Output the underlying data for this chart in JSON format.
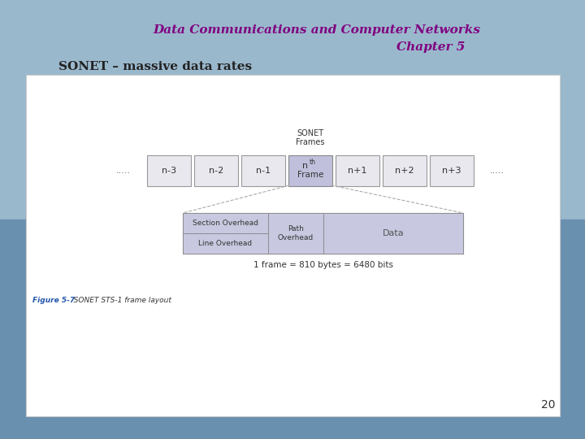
{
  "title_line1": "Data Communications and Computer Networks",
  "title_line2": "Chapter 5",
  "subtitle": "SONET – massive data rates",
  "bg_color_top": "#8ab0cc",
  "bg_color_bot": "#6890b0",
  "title_color": "#800080",
  "subtitle_color": "#222222",
  "slide_bg": "#7aa0be",
  "panel_bg": "#ffffff",
  "frame_boxes": [
    "n-3",
    "n-2",
    "n-1",
    "n+1",
    "n+2",
    "n+3"
  ],
  "sonet_label_line1": "SONET",
  "sonet_label_line2": "Frames",
  "dots": ".....",
  "frame_fill": "#e8e8ee",
  "nth_fill": "#c0c0dc",
  "overhead_fill": "#c8c8e0",
  "caption": "1 frame = 810 bytes = 6480 bits",
  "figure_label": "Figure 5-7",
  "figure_caption": "   SONET STS-1 frame layout",
  "page_number": "20",
  "section_overhead": "Section Overhead",
  "line_overhead": "Line Overhead",
  "path_overhead": "Path\nOverhead",
  "data_label": "Data"
}
